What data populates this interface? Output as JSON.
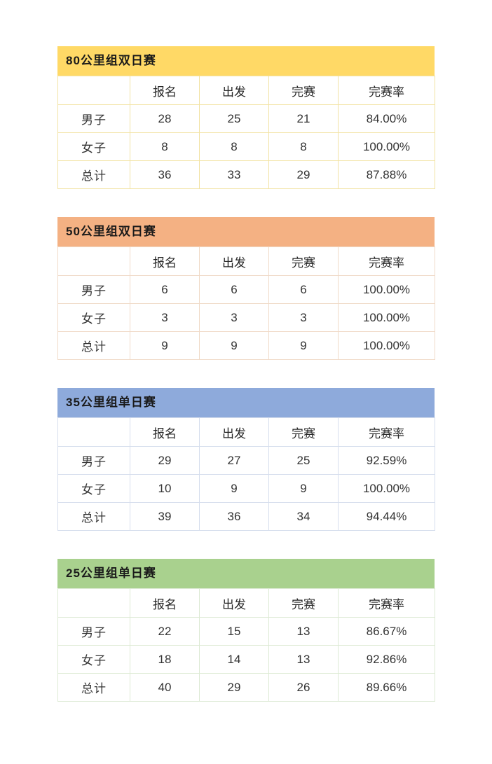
{
  "page": {
    "background": "#ffffff",
    "text_color": "#333333"
  },
  "columns": [
    "",
    "报名",
    "出发",
    "完赛",
    "完赛率"
  ],
  "tables": [
    {
      "title": "80公里组双日赛",
      "header_color": "#FFD966",
      "border_color": "#F2E3A4",
      "rows": [
        {
          "label": "男子",
          "values": [
            "28",
            "25",
            "21",
            "84.00%"
          ]
        },
        {
          "label": "女子",
          "values": [
            "8",
            "8",
            "8",
            "100.00%"
          ]
        },
        {
          "label": "总计",
          "values": [
            "36",
            "33",
            "29",
            "87.88%"
          ]
        }
      ]
    },
    {
      "title": "50公里组双日赛",
      "header_color": "#F4B183",
      "border_color": "#F0DAC8",
      "rows": [
        {
          "label": "男子",
          "values": [
            "6",
            "6",
            "6",
            "100.00%"
          ]
        },
        {
          "label": "女子",
          "values": [
            "3",
            "3",
            "3",
            "100.00%"
          ]
        },
        {
          "label": "总计",
          "values": [
            "9",
            "9",
            "9",
            "100.00%"
          ]
        }
      ]
    },
    {
      "title": "35公里组单日赛",
      "header_color": "#8EAADB",
      "border_color": "#D6DEED",
      "rows": [
        {
          "label": "男子",
          "values": [
            "29",
            "27",
            "25",
            "92.59%"
          ]
        },
        {
          "label": "女子",
          "values": [
            "10",
            "9",
            "9",
            "100.00%"
          ]
        },
        {
          "label": "总计",
          "values": [
            "39",
            "36",
            "34",
            "94.44%"
          ]
        }
      ]
    },
    {
      "title": "25公里组单日赛",
      "header_color": "#A9D18E",
      "border_color": "#DDEAD4",
      "rows": [
        {
          "label": "男子",
          "values": [
            "22",
            "15",
            "13",
            "86.67%"
          ]
        },
        {
          "label": "女子",
          "values": [
            "18",
            "14",
            "13",
            "92.86%"
          ]
        },
        {
          "label": "总计",
          "values": [
            "40",
            "29",
            "26",
            "89.66%"
          ]
        }
      ]
    }
  ]
}
